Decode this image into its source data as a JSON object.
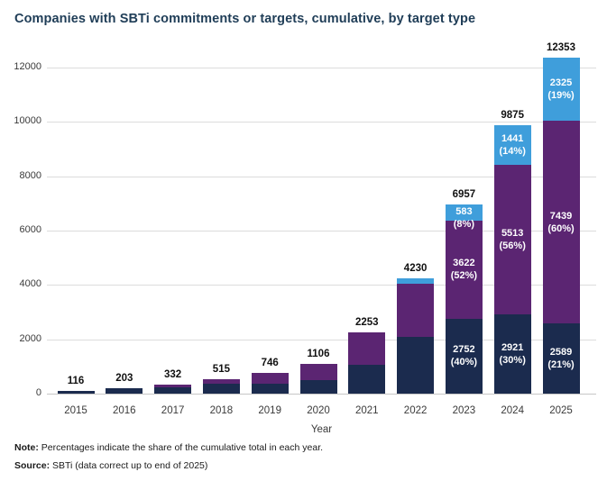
{
  "title": "Companies with SBTi commitments or targets, cumulative, by target type",
  "colors": {
    "navy": "#1b2b4e",
    "purple": "#5b2572",
    "blue": "#3f9edb",
    "title_text": "#1f3d57",
    "grid": "#dcdcdc",
    "axis_line": "#c7c7c7",
    "tick_text": "#3a3a3a",
    "total_label_text": "#111111",
    "segment_label_text": "#ffffff"
  },
  "chart_data": {
    "type": "bar",
    "stacked": true,
    "title": "Companies with SBTi commitments or targets, cumulative, by target type",
    "xlabel": "Year",
    "ylabel": "",
    "ylim": [
      0,
      12000
    ],
    "y_ticks": [
      0,
      2000,
      4000,
      6000,
      8000,
      10000,
      12000
    ],
    "y_tick_labels": [
      "0",
      "2000",
      "4000",
      "6000",
      "8000",
      "10000",
      "12000"
    ],
    "grid": true,
    "legend_position": "none",
    "series_order": [
      "navy",
      "purple",
      "blue"
    ],
    "categories": [
      "2015",
      "2016",
      "2017",
      "2018",
      "2019",
      "2020",
      "2021",
      "2022",
      "2023",
      "2024",
      "2025"
    ],
    "years": [
      {
        "year": "2015",
        "total": 116,
        "total_label": "116",
        "segments": {
          "navy": 116,
          "purple": 0,
          "blue": 0
        }
      },
      {
        "year": "2016",
        "total": 203,
        "total_label": "203",
        "segments": {
          "navy": 203,
          "purple": 0,
          "blue": 0
        }
      },
      {
        "year": "2017",
        "total": 332,
        "total_label": "332",
        "segments": {
          "navy": 240,
          "purple": 92,
          "blue": 0
        }
      },
      {
        "year": "2018",
        "total": 515,
        "total_label": "515",
        "segments": {
          "navy": 350,
          "purple": 165,
          "blue": 0
        }
      },
      {
        "year": "2019",
        "total": 746,
        "total_label": "746",
        "segments": {
          "navy": 355,
          "purple": 391,
          "blue": 0
        }
      },
      {
        "year": "2020",
        "total": 1106,
        "total_label": "1106",
        "segments": {
          "navy": 500,
          "purple": 606,
          "blue": 0
        }
      },
      {
        "year": "2021",
        "total": 2253,
        "total_label": "2253",
        "segments": {
          "navy": 1070,
          "purple": 1183,
          "blue": 0
        }
      },
      {
        "year": "2022",
        "total": 4230,
        "total_label": "4230",
        "segments": {
          "navy": 2100,
          "purple": 1950,
          "blue": 180
        }
      },
      {
        "year": "2023",
        "total": 6957,
        "total_label": "6957",
        "segments": {
          "navy": 2752,
          "purple": 3622,
          "blue": 583
        },
        "segment_labels": {
          "navy": "2752\n(40%)",
          "purple": "3622\n(52%)",
          "blue": "583\n(8%)"
        }
      },
      {
        "year": "2024",
        "total": 9875,
        "total_label": "9875",
        "segments": {
          "navy": 2921,
          "purple": 5513,
          "blue": 1441
        },
        "segment_labels": {
          "navy": "2921\n(30%)",
          "purple": "5513\n(56%)",
          "blue": "1441\n(14%)"
        }
      },
      {
        "year": "2025",
        "total": 12353,
        "total_label": "12353",
        "segments": {
          "navy": 2589,
          "purple": 7439,
          "blue": 2325
        },
        "segment_labels": {
          "navy": "2589\n(21%)",
          "purple": "7439\n(60%)",
          "blue": "2325\n(19%)"
        }
      }
    ]
  },
  "x_axis_title": "Year",
  "footer": {
    "note_label": "Note:",
    "note_text": " Percentages indicate the share of the cumulative total in each year.",
    "source_label": "Source:",
    "source_text": " SBTi (data correct up to end of 2025)"
  }
}
